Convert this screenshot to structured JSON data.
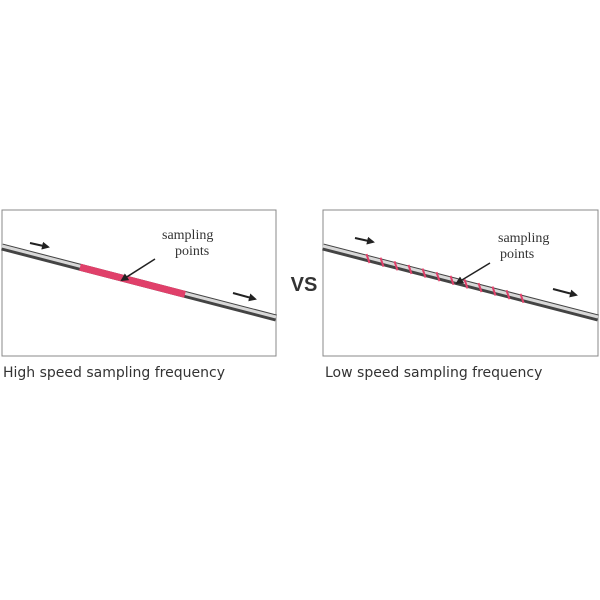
{
  "left": {
    "annotation": [
      "sampling",
      "points"
    ],
    "caption": "High speed sampling frequency"
  },
  "separator": "VS",
  "right": {
    "annotation": [
      "sampling",
      "points"
    ],
    "caption": "Low speed sampling frequency"
  }
}
